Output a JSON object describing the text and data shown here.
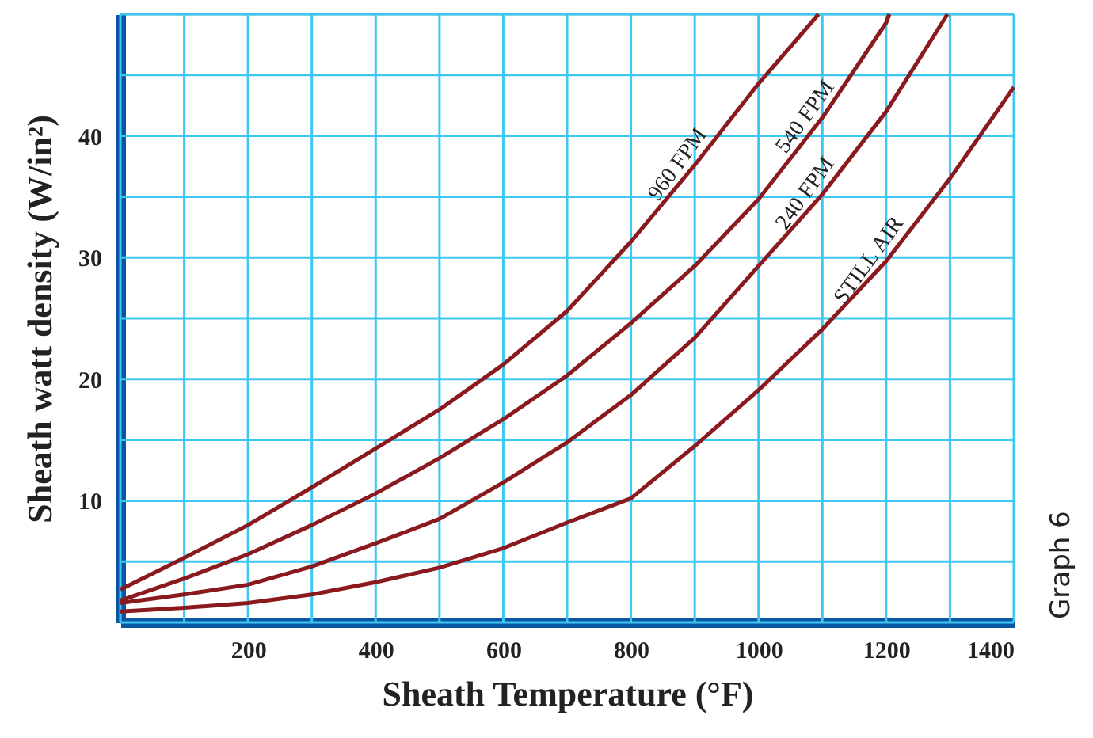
{
  "chart_data": {
    "type": "line",
    "xlabel": "Sheath Temperature (°F)",
    "ylabel": "Sheath watt density (W/in²)",
    "xlim": [
      0,
      1400
    ],
    "xticks": [
      {
        "value": 0,
        "label": null
      },
      {
        "value": 100,
        "label": null
      },
      200,
      {
        "value": 300,
        "label": null
      },
      400,
      {
        "value": 500,
        "label": null
      },
      600,
      {
        "value": 700,
        "label": null
      },
      800,
      {
        "value": 900,
        "label": null
      },
      1000,
      {
        "value": 1100,
        "label": null
      },
      1200,
      {
        "value": 1300,
        "label": null
      },
      1400
    ],
    "ylim": [
      0,
      50
    ],
    "yticks": [
      {
        "value": 0,
        "label": null
      },
      {
        "value": 5,
        "label": null
      },
      10,
      {
        "value": 15,
        "label": null
      },
      20,
      {
        "value": 25,
        "label": null
      },
      30,
      {
        "value": 35,
        "label": null
      },
      40,
      {
        "value": 45,
        "label": null
      },
      {
        "value": 50,
        "label": null
      }
    ],
    "grid": true,
    "marker": "none",
    "line_style": "solid",
    "annotations": [
      "Graph 6"
    ],
    "series": [
      {
        "name": "960 FPM",
        "color": "#8b1a1f",
        "x": [
          0,
          100,
          200,
          300,
          400,
          500,
          600,
          700,
          800,
          900,
          1000,
          1094
        ],
        "values": [
          2.7,
          5.3,
          8.0,
          11.1,
          14.3,
          17.5,
          21.2,
          25.6,
          31.3,
          37.6,
          44.3,
          50
        ]
      },
      {
        "name": "540 FPM",
        "color": "#8b1a1f",
        "x": [
          0,
          100,
          200,
          300,
          400,
          500,
          600,
          700,
          800,
          900,
          1000,
          1100,
          1200,
          1205
        ],
        "values": [
          1.8,
          3.6,
          5.6,
          8.0,
          10.6,
          13.5,
          16.7,
          20.3,
          24.6,
          29.3,
          34.8,
          41.5,
          49.3,
          50
        ]
      },
      {
        "name": "240 FPM",
        "color": "#8b1a1f",
        "x": [
          0,
          100,
          200,
          300,
          400,
          500,
          600,
          700,
          800,
          900,
          1000,
          1100,
          1200,
          1296
        ],
        "values": [
          1.6,
          2.3,
          3.1,
          4.6,
          6.5,
          8.5,
          11.5,
          14.8,
          18.7,
          23.4,
          29.3,
          35.2,
          42.0,
          50
        ]
      },
      {
        "name": "STILL AIR",
        "color": "#8b1a1f",
        "x": [
          0,
          100,
          200,
          300,
          400,
          500,
          600,
          700,
          800,
          900,
          1000,
          1100,
          1200,
          1300,
          1400
        ],
        "values": [
          0.9,
          1.2,
          1.6,
          2.3,
          3.3,
          4.5,
          6.1,
          8.2,
          10.2,
          14.5,
          19.1,
          24.1,
          29.7,
          36.5,
          44.0
        ]
      }
    ]
  }
}
